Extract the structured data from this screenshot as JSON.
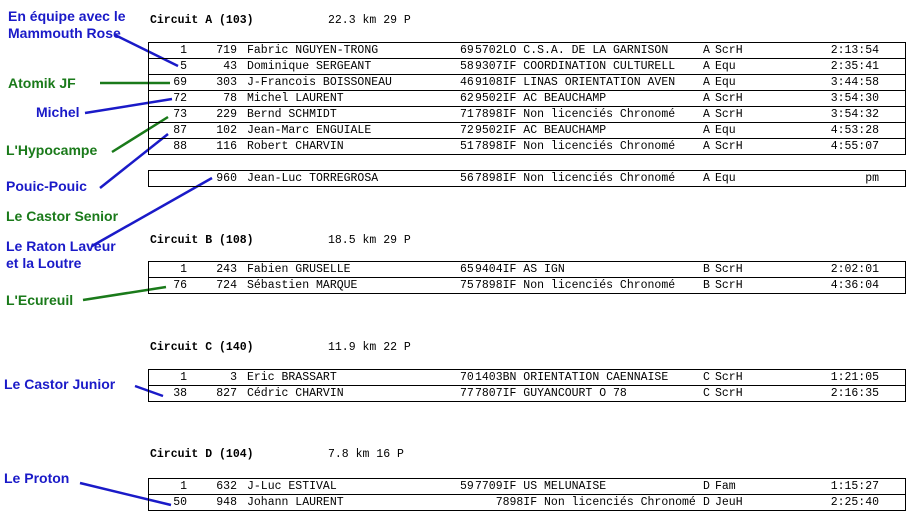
{
  "colors": {
    "blue": "#1a1ac8",
    "green": "#1a7a1a"
  },
  "labels": [
    {
      "text": "En équipe avec le Mammouth Rose",
      "color": "blue"
    },
    {
      "text": "Atomik JF",
      "color": "green"
    },
    {
      "text": "Michel",
      "color": "blue"
    },
    {
      "text": "L'Hypocampe",
      "color": "green"
    },
    {
      "text": "Pouic-Pouic",
      "color": "blue"
    },
    {
      "text": "Le Castor Senior",
      "color": "green"
    },
    {
      "text": "Le Raton Laveur et la Loutre",
      "color": "blue"
    },
    {
      "text": "L'Ecureuil",
      "color": "green"
    },
    {
      "text": "Le Castor Junior",
      "color": "blue"
    },
    {
      "text": "Le Proton",
      "color": "blue"
    }
  ],
  "circuits": [
    {
      "title": "Circuit A  (103)",
      "info": "22.3 km   29 P",
      "tables": [
        [
          [
            "1",
            "719",
            "Fabric NGUYEN-TRONG",
            "69",
            "5702LO C.S.A. DE LA GARNISON",
            "A",
            "ScrH",
            "2:13:54"
          ],
          [
            "5",
            "43",
            "Dominique SERGEANT",
            "58",
            "9307IF COORDINATION CULTURELL",
            "A",
            "Equ",
            "2:35:41"
          ],
          [
            "69",
            "303",
            "J-Francois BOISSONEAU",
            "46",
            "9108IF LINAS ORIENTATION AVEN",
            "A",
            "Equ",
            "3:44:58"
          ],
          [
            "72",
            "78",
            "Michel LAURENT",
            "62",
            "9502IF AC BEAUCHAMP",
            "A",
            "ScrH",
            "3:54:30"
          ],
          [
            "73",
            "229",
            "Bernd SCHMIDT",
            "71",
            "7898IF Non licenciés Chronomé",
            "A",
            "ScrH",
            "3:54:32"
          ],
          [
            "87",
            "102",
            "Jean-Marc ENGUIALE",
            "72",
            "9502IF AC BEAUCHAMP",
            "A",
            "Equ",
            "4:53:28"
          ],
          [
            "88",
            "116",
            "Robert CHARVIN",
            "51",
            "7898IF Non licenciés Chronomé",
            "A",
            "ScrH",
            "4:55:07"
          ]
        ],
        [
          [
            "",
            "960",
            "Jean-Luc TORREGROSA",
            "56",
            "7898IF Non licenciés Chronomé",
            "A",
            "Equ",
            "pm"
          ]
        ]
      ]
    },
    {
      "title": "Circuit B  (108)",
      "info": "18.5 km   29 P",
      "tables": [
        [
          [
            "1",
            "243",
            "Fabien GRUSELLE",
            "65",
            "9404IF AS IGN",
            "B",
            "ScrH",
            "2:02:01"
          ],
          [
            "76",
            "724",
            "Sébastien MARQUE",
            "75",
            "7898IF Non licenciés Chronomé",
            "B",
            "ScrH",
            "4:36:04"
          ]
        ]
      ]
    },
    {
      "title": "Circuit C  (140)",
      "info": "11.9 km   22 P",
      "tables": [
        [
          [
            "1",
            "3",
            "Eric BRASSART",
            "70",
            "1403BN ORIENTATION CAENNAISE",
            "C",
            "ScrH",
            "1:21:05"
          ],
          [
            "38",
            "827",
            "Cédric CHARVIN",
            "77",
            "7807IF GUYANCOURT O 78",
            "C",
            "ScrH",
            "2:16:35"
          ]
        ]
      ]
    },
    {
      "title": "Circuit D  (104)",
      "info": "7.8 km   16 P",
      "tables": [
        [
          [
            "1",
            "632",
            "J-Luc ESTIVAL",
            "59",
            "7709IF US MELUNAISE",
            "D",
            "Fam",
            "1:15:27"
          ],
          [
            "50",
            "948",
            "Johann LAURENT",
            "",
            "   7898IF Non licenciés Chronomé",
            "D",
            "JeuH",
            "2:25:40"
          ]
        ]
      ]
    }
  ]
}
